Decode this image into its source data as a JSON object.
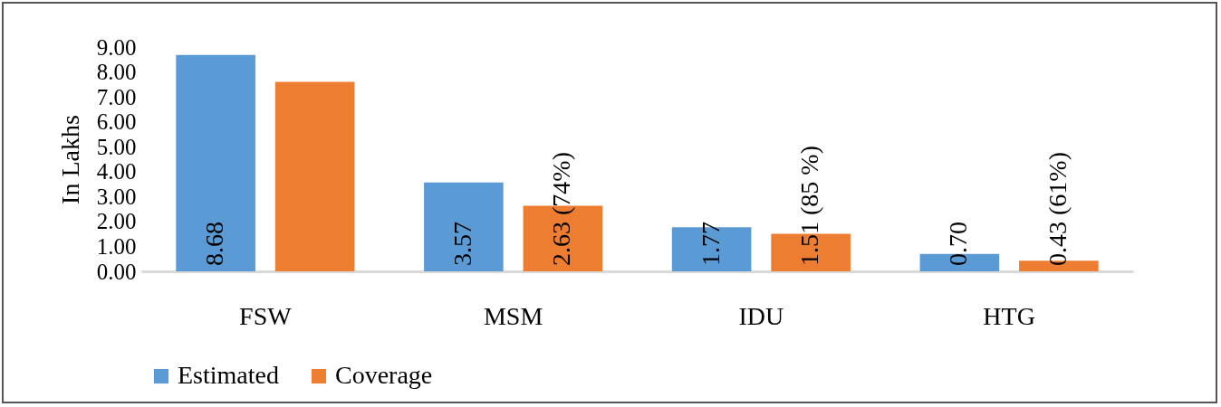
{
  "chart_data": {
    "type": "bar",
    "ylabel": "In Lakhs",
    "categories": [
      "FSW",
      "MSM",
      "IDU",
      "HTG"
    ],
    "series": [
      {
        "name": "Estimated",
        "color": "#5b9bd5",
        "values": [
          8.68,
          3.57,
          1.77,
          0.7
        ],
        "value_labels": [
          "8.68",
          "3.57",
          "1.77",
          "0.70"
        ]
      },
      {
        "name": "Coverage",
        "color": "#ed7d31",
        "values": [
          7.6,
          2.63,
          1.51,
          0.43
        ],
        "value_labels": [
          null,
          "2.63 (74%)",
          "1.51 (85 %)",
          "0.43 (61%)"
        ]
      }
    ],
    "ylim": [
      0,
      9
    ],
    "yticks": [
      {
        "value": 0,
        "label": "0.00"
      },
      {
        "value": 1,
        "label": "1.00"
      },
      {
        "value": 2,
        "label": "2.00"
      },
      {
        "value": 3,
        "label": "3.00"
      },
      {
        "value": 4,
        "label": "4.00"
      },
      {
        "value": 5,
        "label": "5.00"
      },
      {
        "value": 6,
        "label": "6.00"
      },
      {
        "value": 7,
        "label": "7.00"
      },
      {
        "value": 8,
        "label": "8.00"
      },
      {
        "value": 9,
        "label": "9.00"
      }
    ],
    "grid": false,
    "legend": "bottom"
  }
}
